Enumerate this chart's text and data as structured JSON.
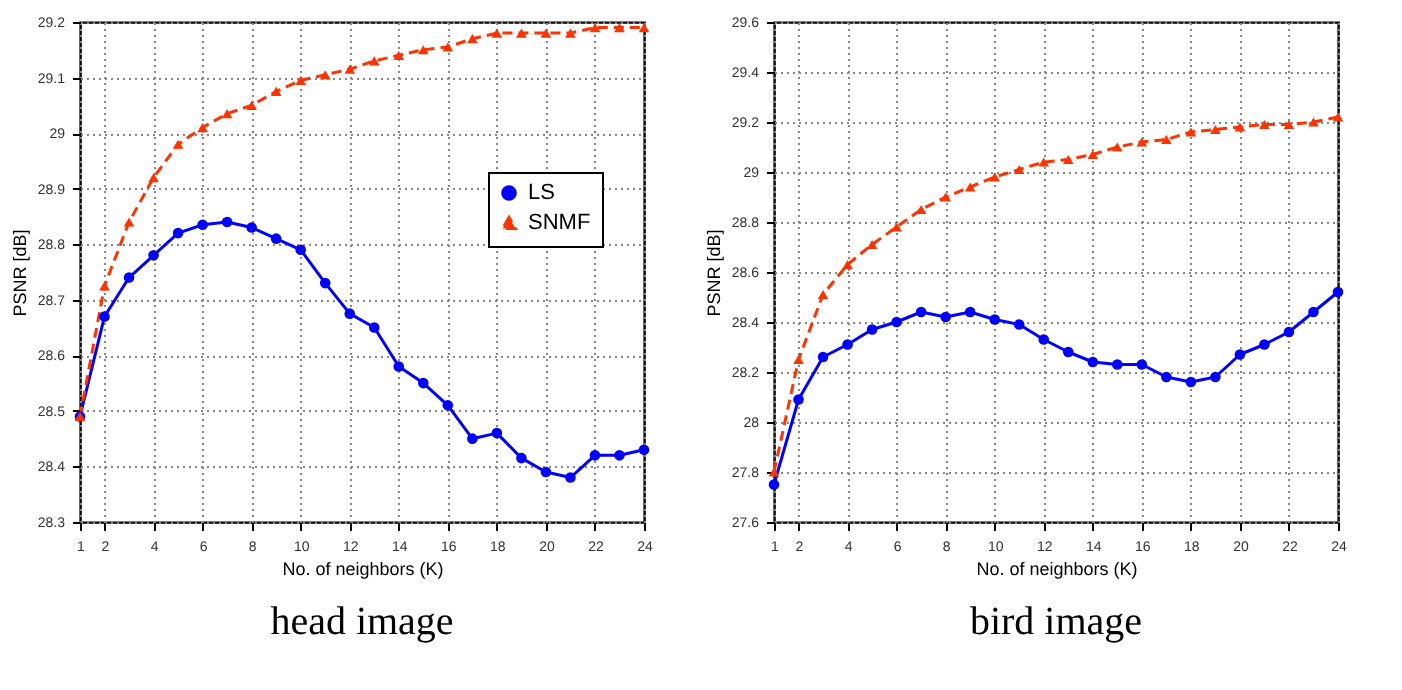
{
  "chart_data": [
    {
      "type": "line",
      "title": "head image",
      "xlabel": "No. of neighbors (K)",
      "ylabel": "PSNR [dB]",
      "x": [
        1,
        2,
        3,
        4,
        5,
        6,
        7,
        8,
        9,
        10,
        11,
        12,
        13,
        14,
        15,
        16,
        17,
        18,
        19,
        20,
        21,
        22,
        23,
        24
      ],
      "xlim": [
        1,
        24
      ],
      "xticks": [
        1,
        2,
        4,
        6,
        8,
        10,
        12,
        14,
        16,
        18,
        20,
        22,
        24
      ],
      "ylim": [
        28.3,
        29.2
      ],
      "yticks": [
        28.3,
        28.4,
        28.5,
        28.6,
        28.7,
        28.8,
        28.9,
        29,
        29.1,
        29.2
      ],
      "grid": true,
      "legend": "right",
      "series": [
        {
          "name": "LS",
          "color": "#0000ff",
          "marker": "circle",
          "line_style": "solid",
          "values": [
            28.49,
            28.67,
            28.74,
            28.78,
            28.82,
            28.835,
            28.84,
            28.83,
            28.81,
            28.79,
            28.73,
            28.675,
            28.65,
            28.58,
            28.55,
            28.51,
            28.45,
            28.46,
            28.415,
            28.39,
            28.38,
            28.42,
            28.42,
            28.43
          ]
        },
        {
          "name": "SNMF",
          "color": "#ff3300",
          "marker": "triangle",
          "line_style": "dashed",
          "values": [
            28.49,
            28.725,
            28.84,
            28.92,
            28.98,
            29.01,
            29.035,
            29.05,
            29.075,
            29.095,
            29.105,
            29.115,
            29.13,
            29.14,
            29.15,
            29.155,
            29.17,
            29.18,
            29.18,
            29.18,
            29.18,
            29.19,
            29.19,
            29.19
          ]
        }
      ]
    },
    {
      "type": "line",
      "title": "bird image",
      "xlabel": "No. of neighbors (K)",
      "ylabel": "PSNR [dB]",
      "x": [
        1,
        2,
        3,
        4,
        5,
        6,
        7,
        8,
        9,
        10,
        11,
        12,
        13,
        14,
        15,
        16,
        17,
        18,
        19,
        20,
        21,
        22,
        23,
        24
      ],
      "xlim": [
        1,
        24
      ],
      "xticks": [
        1,
        2,
        4,
        6,
        8,
        10,
        12,
        14,
        16,
        18,
        20,
        22,
        24
      ],
      "ylim": [
        27.6,
        29.6
      ],
      "yticks": [
        27.6,
        27.8,
        28,
        28.2,
        28.4,
        28.6,
        28.8,
        29,
        29.2,
        29.4,
        29.6
      ],
      "grid": true,
      "legend": "right",
      "series": [
        {
          "name": "LS",
          "color": "#0000ff",
          "marker": "circle",
          "line_style": "solid",
          "values": [
            27.75,
            28.09,
            28.26,
            28.31,
            28.37,
            28.4,
            28.44,
            28.42,
            28.44,
            28.41,
            28.39,
            28.33,
            28.28,
            28.24,
            28.23,
            28.23,
            28.18,
            28.16,
            28.18,
            28.27,
            28.31,
            28.36,
            28.44,
            28.52
          ]
        },
        {
          "name": "SNMF",
          "color": "#ff3300",
          "marker": "triangle",
          "line_style": "dashed",
          "values": [
            27.8,
            28.25,
            28.51,
            28.63,
            28.71,
            28.78,
            28.85,
            28.9,
            28.94,
            28.98,
            29.01,
            29.04,
            29.05,
            29.07,
            29.1,
            29.12,
            29.13,
            29.16,
            29.17,
            29.18,
            29.19,
            29.19,
            29.2,
            29.22
          ]
        }
      ]
    }
  ]
}
